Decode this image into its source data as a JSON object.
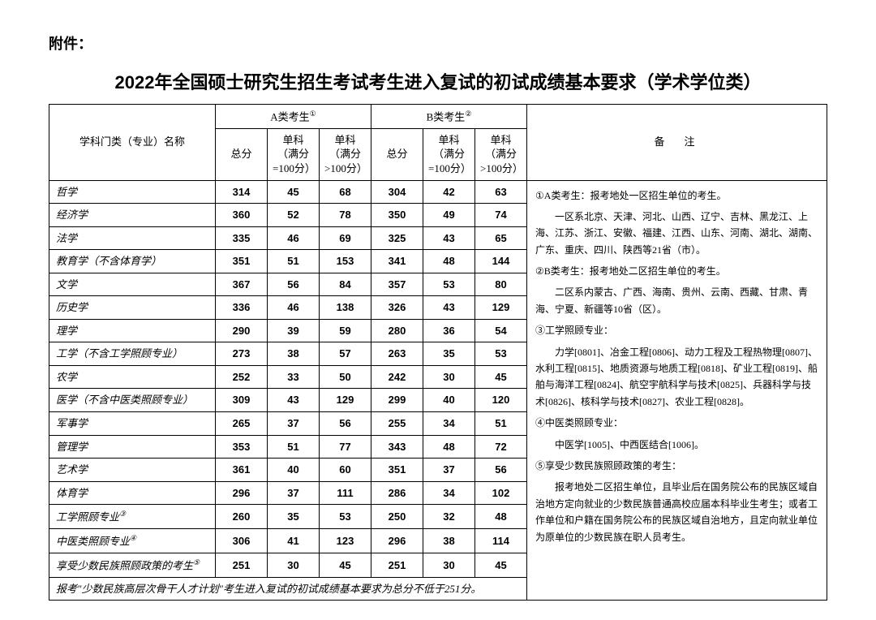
{
  "attachment_label": "附件：",
  "page_title": "2022年全国硕士研究生招生考试考生进入复试的初试成绩基本要求（学术学位类）",
  "headers": {
    "subject": "学科门类（专业）名称",
    "groupA": "A类考生",
    "groupB": "B类考生",
    "groupA_sup": "①",
    "groupB_sup": "②",
    "total": "总分",
    "sub100": "单科（满分=100分）",
    "subOver100": "单科（满分>100分）",
    "notes": "备注"
  },
  "rows": [
    {
      "subject": "哲学",
      "a_total": "314",
      "a_s100": "45",
      "a_o100": "68",
      "b_total": "304",
      "b_s100": "42",
      "b_o100": "63"
    },
    {
      "subject": "经济学",
      "a_total": "360",
      "a_s100": "52",
      "a_o100": "78",
      "b_total": "350",
      "b_s100": "49",
      "b_o100": "74"
    },
    {
      "subject": "法学",
      "a_total": "335",
      "a_s100": "46",
      "a_o100": "69",
      "b_total": "325",
      "b_s100": "43",
      "b_o100": "65"
    },
    {
      "subject": "教育学（不含体育学）",
      "a_total": "351",
      "a_s100": "51",
      "a_o100": "153",
      "b_total": "341",
      "b_s100": "48",
      "b_o100": "144"
    },
    {
      "subject": "文学",
      "a_total": "367",
      "a_s100": "56",
      "a_o100": "84",
      "b_total": "357",
      "b_s100": "53",
      "b_o100": "80"
    },
    {
      "subject": "历史学",
      "a_total": "336",
      "a_s100": "46",
      "a_o100": "138",
      "b_total": "326",
      "b_s100": "43",
      "b_o100": "129"
    },
    {
      "subject": "理学",
      "a_total": "290",
      "a_s100": "39",
      "a_o100": "59",
      "b_total": "280",
      "b_s100": "36",
      "b_o100": "54"
    },
    {
      "subject": "工学（不含工学照顾专业）",
      "a_total": "273",
      "a_s100": "38",
      "a_o100": "57",
      "b_total": "263",
      "b_s100": "35",
      "b_o100": "53"
    },
    {
      "subject": "农学",
      "a_total": "252",
      "a_s100": "33",
      "a_o100": "50",
      "b_total": "242",
      "b_s100": "30",
      "b_o100": "45"
    },
    {
      "subject": "医学（不含中医类照顾专业）",
      "a_total": "309",
      "a_s100": "43",
      "a_o100": "129",
      "b_total": "299",
      "b_s100": "40",
      "b_o100": "120"
    },
    {
      "subject": "军事学",
      "a_total": "265",
      "a_s100": "37",
      "a_o100": "56",
      "b_total": "255",
      "b_s100": "34",
      "b_o100": "51"
    },
    {
      "subject": "管理学",
      "a_total": "353",
      "a_s100": "51",
      "a_o100": "77",
      "b_total": "343",
      "b_s100": "48",
      "b_o100": "72"
    },
    {
      "subject": "艺术学",
      "a_total": "361",
      "a_s100": "40",
      "a_o100": "60",
      "b_total": "351",
      "b_s100": "37",
      "b_o100": "56"
    },
    {
      "subject": "体育学",
      "a_total": "296",
      "a_s100": "37",
      "a_o100": "111",
      "b_total": "286",
      "b_s100": "34",
      "b_o100": "102"
    },
    {
      "subject": "工学照顾专业",
      "sup": "③",
      "a_total": "260",
      "a_s100": "35",
      "a_o100": "53",
      "b_total": "250",
      "b_s100": "32",
      "b_o100": "48"
    },
    {
      "subject": "中医类照顾专业",
      "sup": "④",
      "a_total": "306",
      "a_s100": "41",
      "a_o100": "123",
      "b_total": "296",
      "b_s100": "38",
      "b_o100": "114"
    },
    {
      "subject": "享受少数民族照顾政策的考生",
      "sup": "⑤",
      "a_total": "251",
      "a_s100": "30",
      "a_o100": "45",
      "b_total": "251",
      "b_s100": "30",
      "b_o100": "45"
    }
  ],
  "footer": "报考\"少数民族高层次骨干人才计划\"考生进入复试的初试成绩基本要求为总分不低于251分。",
  "notes": {
    "n1_title": "①A类考生：报考地处一区招生单位的考生。",
    "n1_body": "一区系北京、天津、河北、山西、辽宁、吉林、黑龙江、上海、江苏、浙江、安徽、福建、江西、山东、河南、湖北、湖南、广东、重庆、四川、陕西等21省（市）。",
    "n2_title": "②B类考生：报考地处二区招生单位的考生。",
    "n2_body": "二区系内蒙古、广西、海南、贵州、云南、西藏、甘肃、青海、宁夏、新疆等10省（区）。",
    "n3_title": "③工学照顾专业：",
    "n3_body": "力学[0801]、冶金工程[0806]、动力工程及工程热物理[0807]、水利工程[0815]、地质资源与地质工程[0818]、矿业工程[0819]、船舶与海洋工程[0824]、航空宇航科学与技术[0825]、兵器科学与技术[0826]、核科学与技术[0827]、农业工程[0828]。",
    "n4_title": "④中医类照顾专业：",
    "n4_body": "中医学[1005]、中西医结合[1006]。",
    "n5_title": "⑤享受少数民族照顾政策的考生：",
    "n5_body": "报考地处二区招生单位，且毕业后在国务院公布的民族区域自治地方定向就业的少数民族普通高校应届本科毕业生考生；或者工作单位和户籍在国务院公布的民族区域自治地方，且定向就业单位为原单位的少数民族在职人员考生。"
  },
  "style": {
    "body_bg": "#ffffff",
    "text_color": "#000000",
    "border_color": "#000000",
    "title_fontsize": 22,
    "header_fontsize": 13,
    "cell_fontsize": 13,
    "notes_fontsize": 12
  }
}
